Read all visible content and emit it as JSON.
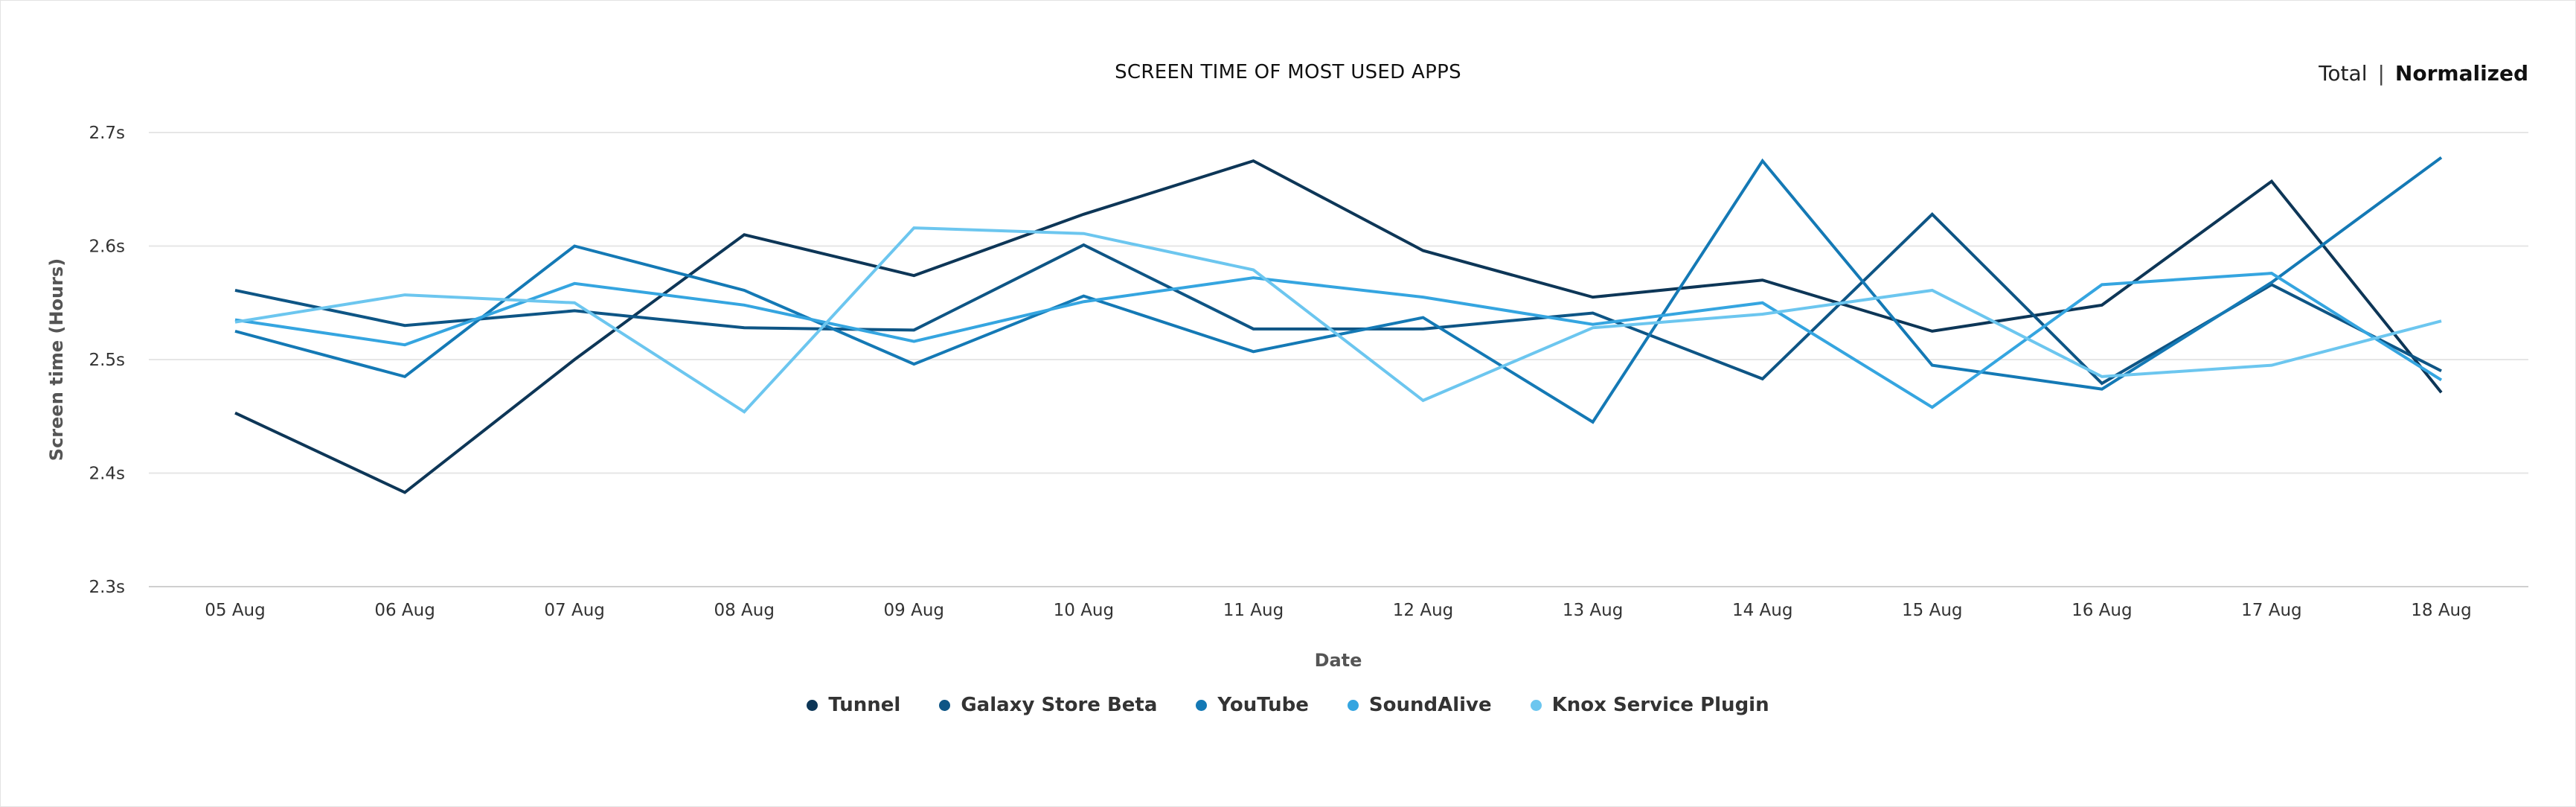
{
  "header": {
    "toggle_total": "Total",
    "toggle_separator": "|",
    "toggle_normalized": "Normalized",
    "active_toggle": "Normalized"
  },
  "chart_data": {
    "type": "line",
    "title": "SCREEN TIME OF MOST USED APPS",
    "xlabel": "Date",
    "ylabel": "Screen time (Hours)",
    "ylim": [
      2.3,
      2.7
    ],
    "yticks": [
      "2.3s",
      "2.4s",
      "2.5s",
      "2.6s",
      "2.7s"
    ],
    "yticks_values": [
      2.3,
      2.4,
      2.5,
      2.6,
      2.7
    ],
    "grid": true,
    "legend_position": "bottom",
    "categories": [
      "05 Aug",
      "06 Aug",
      "07 Aug",
      "08 Aug",
      "09 Aug",
      "10 Aug",
      "11 Aug",
      "12 Aug",
      "13 Aug",
      "14 Aug",
      "15 Aug",
      "16 Aug",
      "17 Aug",
      "18 Aug"
    ],
    "series": [
      {
        "name": "Tunnel",
        "color": "#0d3657",
        "values": [
          2.453,
          2.383,
          2.5,
          2.61,
          2.574,
          2.628,
          2.675,
          2.596,
          2.555,
          2.57,
          2.525,
          2.548,
          2.657,
          2.471
        ]
      },
      {
        "name": "Galaxy Store Beta",
        "color": "#0e5585",
        "values": [
          2.561,
          2.53,
          2.543,
          2.528,
          2.526,
          2.601,
          2.527,
          2.527,
          2.541,
          2.483,
          2.628,
          2.479,
          2.566,
          2.49
        ]
      },
      {
        "name": "YouTube",
        "color": "#1479b5",
        "values": [
          2.525,
          2.485,
          2.6,
          2.561,
          2.496,
          2.556,
          2.507,
          2.537,
          2.445,
          2.675,
          2.495,
          2.474,
          2.568,
          2.678
        ]
      },
      {
        "name": "SoundAlive",
        "color": "#35a5e0",
        "values": [
          2.535,
          2.513,
          2.567,
          2.548,
          2.516,
          2.551,
          2.572,
          2.555,
          2.531,
          2.55,
          2.458,
          2.566,
          2.576,
          2.482
        ]
      },
      {
        "name": "Knox Service Plugin",
        "color": "#6cc6ef",
        "values": [
          2.533,
          2.557,
          2.55,
          2.454,
          2.616,
          2.611,
          2.579,
          2.464,
          2.528,
          2.54,
          2.561,
          2.485,
          2.495,
          2.534
        ]
      }
    ]
  }
}
